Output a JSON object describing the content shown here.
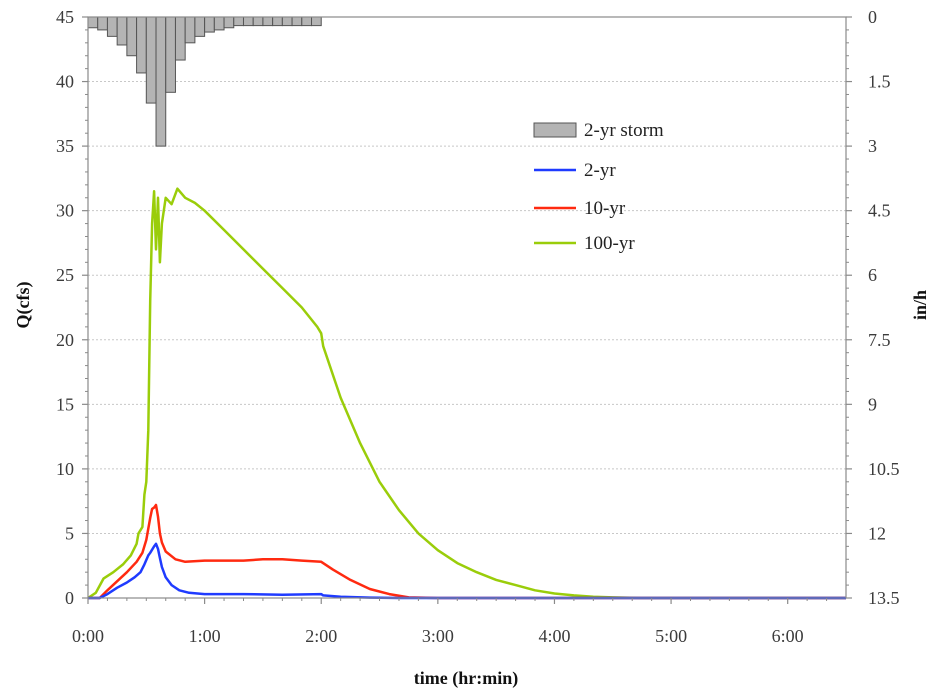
{
  "chart_data": {
    "type": "line",
    "title": "",
    "xlabel": "time (hr:min)",
    "ylabel": "Q(cfs)",
    "y2label": "in/h",
    "xlim": [
      0,
      390
    ],
    "ylim": [
      0,
      45
    ],
    "y2lim": [
      0,
      13.5
    ],
    "y2_inverted": true,
    "grid": true,
    "legend_position": "right",
    "x_ticks": [
      {
        "value": 0,
        "label": "0:00"
      },
      {
        "value": 60,
        "label": "1:00"
      },
      {
        "value": 120,
        "label": "2:00"
      },
      {
        "value": 180,
        "label": "3:00"
      },
      {
        "value": 240,
        "label": "4:00"
      },
      {
        "value": 300,
        "label": "5:00"
      },
      {
        "value": 360,
        "label": "6:00"
      }
    ],
    "y_ticks": [
      0,
      5,
      10,
      15,
      20,
      25,
      30,
      35,
      40,
      45
    ],
    "y2_ticks": [
      "0",
      "1.5",
      "3",
      "4.5",
      "6",
      "7.5",
      "9",
      "10.5",
      "12",
      "13.5"
    ],
    "colors": {
      "storm_fill": "#b4b4b4",
      "storm_stroke": "#555555",
      "two_yr": "#1f3bff",
      "ten_yr": "#ff2a10",
      "hundred_yr": "#9acd0a",
      "grid": "#c8c8c8",
      "axis": "#8a8a8a"
    },
    "storm": {
      "name": "2-yr storm",
      "bar_width_min": 5,
      "bars": [
        {
          "t": 0,
          "v": 0.25
        },
        {
          "t": 5,
          "v": 0.3
        },
        {
          "t": 10,
          "v": 0.45
        },
        {
          "t": 15,
          "v": 0.65
        },
        {
          "t": 20,
          "v": 0.9
        },
        {
          "t": 25,
          "v": 1.3
        },
        {
          "t": 30,
          "v": 2.0
        },
        {
          "t": 35,
          "v": 3.0
        },
        {
          "t": 40,
          "v": 1.75
        },
        {
          "t": 45,
          "v": 1.0
        },
        {
          "t": 50,
          "v": 0.6
        },
        {
          "t": 55,
          "v": 0.45
        },
        {
          "t": 60,
          "v": 0.35
        },
        {
          "t": 65,
          "v": 0.3
        },
        {
          "t": 70,
          "v": 0.25
        },
        {
          "t": 75,
          "v": 0.2
        },
        {
          "t": 80,
          "v": 0.2
        },
        {
          "t": 85,
          "v": 0.2
        },
        {
          "t": 90,
          "v": 0.2
        },
        {
          "t": 95,
          "v": 0.2
        },
        {
          "t": 100,
          "v": 0.2
        },
        {
          "t": 105,
          "v": 0.2
        },
        {
          "t": 110,
          "v": 0.2
        },
        {
          "t": 115,
          "v": 0.2
        }
      ]
    },
    "series": [
      {
        "key": "two_yr",
        "name": "2-yr",
        "points": [
          [
            0,
            0
          ],
          [
            6,
            0
          ],
          [
            10,
            0.3
          ],
          [
            15,
            0.8
          ],
          [
            20,
            1.2
          ],
          [
            24,
            1.6
          ],
          [
            27,
            2.0
          ],
          [
            29,
            2.6
          ],
          [
            31,
            3.3
          ],
          [
            32,
            3.5
          ],
          [
            34,
            4.0
          ],
          [
            35,
            4.2
          ],
          [
            36,
            3.8
          ],
          [
            37,
            3.1
          ],
          [
            38,
            2.4
          ],
          [
            40,
            1.6
          ],
          [
            43,
            1.0
          ],
          [
            47,
            0.6
          ],
          [
            52,
            0.4
          ],
          [
            60,
            0.3
          ],
          [
            80,
            0.3
          ],
          [
            100,
            0.25
          ],
          [
            120,
            0.3
          ],
          [
            121,
            0.2
          ],
          [
            130,
            0.1
          ],
          [
            145,
            0.03
          ],
          [
            160,
            0
          ],
          [
            390,
            0
          ]
        ]
      },
      {
        "key": "ten_yr",
        "name": "10-yr",
        "points": [
          [
            0,
            0
          ],
          [
            6,
            0
          ],
          [
            10,
            0.6
          ],
          [
            15,
            1.3
          ],
          [
            20,
            2.0
          ],
          [
            25,
            2.8
          ],
          [
            28,
            3.5
          ],
          [
            30,
            4.5
          ],
          [
            32,
            6.2
          ],
          [
            33,
            6.9
          ],
          [
            34,
            7.0
          ],
          [
            35,
            7.2
          ],
          [
            36,
            6.3
          ],
          [
            37,
            5.0
          ],
          [
            38,
            4.3
          ],
          [
            40,
            3.6
          ],
          [
            45,
            3.0
          ],
          [
            50,
            2.8
          ],
          [
            60,
            2.9
          ],
          [
            70,
            2.9
          ],
          [
            80,
            2.9
          ],
          [
            90,
            3.0
          ],
          [
            100,
            3.0
          ],
          [
            110,
            2.9
          ],
          [
            120,
            2.8
          ],
          [
            126,
            2.2
          ],
          [
            135,
            1.4
          ],
          [
            145,
            0.7
          ],
          [
            155,
            0.3
          ],
          [
            165,
            0.05
          ],
          [
            180,
            0
          ],
          [
            390,
            0
          ]
        ]
      },
      {
        "key": "hundred_yr",
        "name": "100-yr",
        "points": [
          [
            0,
            0
          ],
          [
            4,
            0.4
          ],
          [
            8,
            1.5
          ],
          [
            13,
            2.0
          ],
          [
            18,
            2.6
          ],
          [
            22,
            3.3
          ],
          [
            25,
            4.2
          ],
          [
            26,
            5.0
          ],
          [
            28,
            5.5
          ],
          [
            29,
            8.0
          ],
          [
            30,
            9.0
          ],
          [
            31,
            13.0
          ],
          [
            32,
            23.0
          ],
          [
            33,
            29.0
          ],
          [
            34,
            31.5
          ],
          [
            35,
            27.0
          ],
          [
            36,
            31.0
          ],
          [
            37,
            26.0
          ],
          [
            38,
            29.0
          ],
          [
            40,
            31.0
          ],
          [
            43,
            30.5
          ],
          [
            46,
            31.7
          ],
          [
            50,
            31.0
          ],
          [
            55,
            30.6
          ],
          [
            60,
            30.0
          ],
          [
            70,
            28.5
          ],
          [
            80,
            27.0
          ],
          [
            90,
            25.5
          ],
          [
            100,
            24.0
          ],
          [
            110,
            22.5
          ],
          [
            118,
            21.0
          ],
          [
            120,
            20.5
          ],
          [
            121,
            19.5
          ],
          [
            130,
            15.5
          ],
          [
            140,
            12.0
          ],
          [
            150,
            9.0
          ],
          [
            160,
            6.8
          ],
          [
            170,
            5.0
          ],
          [
            180,
            3.7
          ],
          [
            190,
            2.7
          ],
          [
            200,
            2.0
          ],
          [
            210,
            1.4
          ],
          [
            220,
            1.0
          ],
          [
            230,
            0.6
          ],
          [
            240,
            0.35
          ],
          [
            250,
            0.2
          ],
          [
            260,
            0.1
          ],
          [
            270,
            0.05
          ],
          [
            285,
            0
          ],
          [
            390,
            0
          ]
        ]
      }
    ]
  }
}
